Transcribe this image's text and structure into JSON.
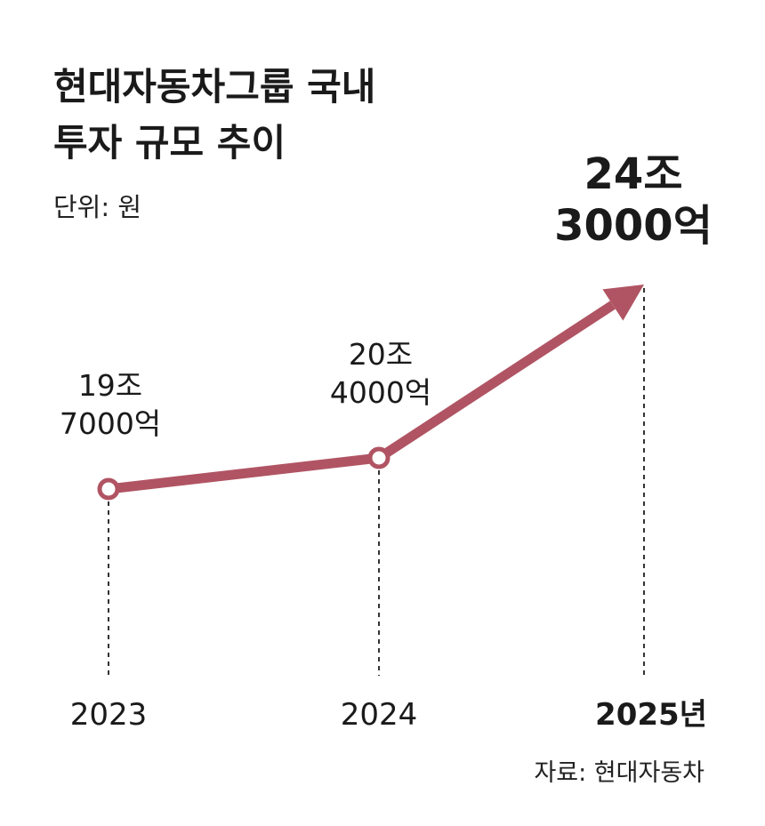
{
  "title_lines": [
    "현대자동차그룹 국내",
    "투자 규모 추이"
  ],
  "unit": "단위: 원",
  "source": "자료: 현대자동차",
  "colors": {
    "accent": "#b05463",
    "text": "#1a1a1a",
    "guide": "#333333",
    "marker_fill": "#ffffff"
  },
  "chart_data": {
    "type": "line",
    "title": "현대자동차그룹 국내 투자 규모 추이",
    "unit": "단위: 원",
    "x": [
      "2023",
      "2024",
      "2025년"
    ],
    "series": [
      {
        "values": [
          19.7,
          20.4,
          24.3
        ],
        "labels": [
          [
            "19조",
            "7000억"
          ],
          [
            "20조",
            "4000억"
          ],
          [
            "24조",
            "3000억"
          ]
        ]
      }
    ],
    "highlight_index": 2,
    "ylim": [
      18.3,
      24.7
    ],
    "grid": false,
    "legend": "none",
    "vertical_guides": "dashed",
    "last_segment": "arrow"
  }
}
